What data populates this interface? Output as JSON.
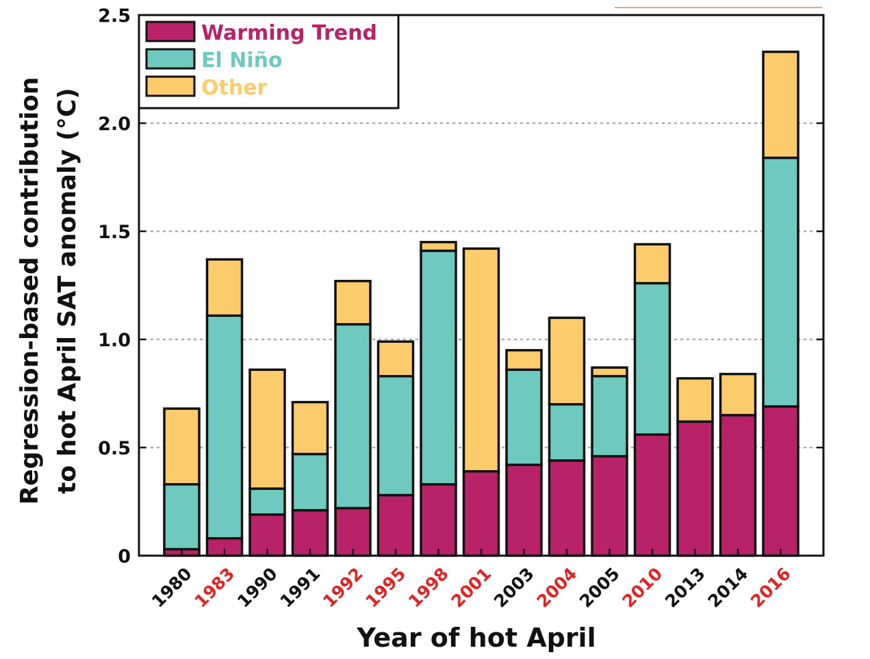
{
  "chart_data": {
    "type": "bar",
    "stacked": true,
    "title": "",
    "xlabel": "Year of hot April",
    "ylabel_line1": "Regression-based contribution",
    "ylabel_line2": "to hot April SAT anomaly (°C)",
    "ylim": [
      0,
      2.5
    ],
    "yticks": [
      {
        "value": 0,
        "label": "0"
      },
      {
        "value": 0.5,
        "label": "0.5"
      },
      {
        "value": 1.0,
        "label": "1.0"
      },
      {
        "value": 1.5,
        "label": "1.5"
      },
      {
        "value": 2.0,
        "label": "2.0"
      },
      {
        "value": 2.5,
        "label": "2.5"
      }
    ],
    "grid": "dotted horizontal at 0.5 intervals",
    "legend_position": "top-left",
    "categories": [
      "1980",
      "1983",
      "1990",
      "1991",
      "1992",
      "1995",
      "1998",
      "2001",
      "2003",
      "2004",
      "2005",
      "2010",
      "2013",
      "2014",
      "2016"
    ],
    "category_highlight": [
      false,
      true,
      false,
      false,
      true,
      true,
      true,
      true,
      false,
      true,
      false,
      true,
      false,
      false,
      true
    ],
    "category_colors": {
      "normal": "#111111",
      "highlight": "#e02424"
    },
    "series": [
      {
        "name": "Warming Trend",
        "color": "#b82267",
        "values": [
          0.03,
          0.08,
          0.19,
          0.21,
          0.22,
          0.28,
          0.33,
          0.39,
          0.42,
          0.44,
          0.46,
          0.56,
          0.62,
          0.65,
          0.69
        ]
      },
      {
        "name": "El Niño",
        "color": "#6ec9be",
        "values": [
          0.3,
          1.03,
          0.12,
          0.26,
          0.85,
          0.55,
          1.08,
          0.0,
          0.44,
          0.26,
          0.37,
          0.7,
          0.0,
          0.0,
          1.15
        ]
      },
      {
        "name": "Other",
        "color": "#fccb6b",
        "values": [
          0.35,
          0.26,
          0.55,
          0.24,
          0.2,
          0.16,
          0.04,
          1.03,
          0.09,
          0.4,
          0.04,
          0.18,
          0.2,
          0.19,
          0.49
        ]
      }
    ]
  }
}
